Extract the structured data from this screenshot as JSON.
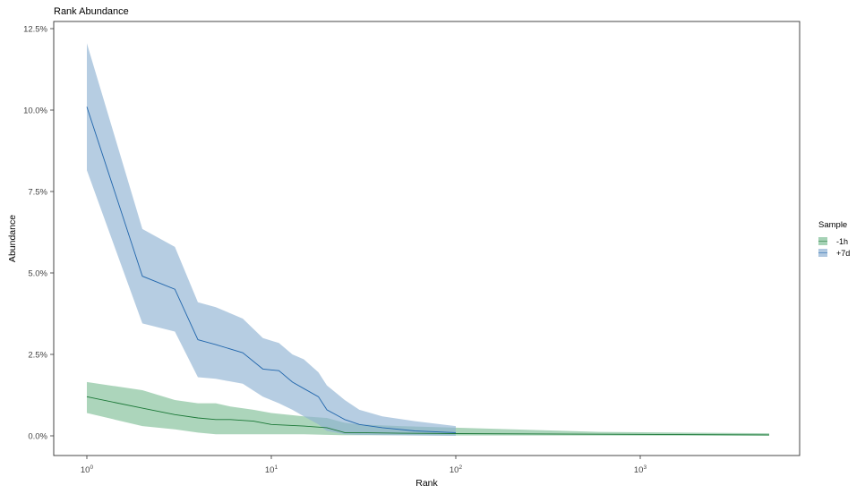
{
  "chart_data": {
    "type": "area",
    "title": "Rank Abundance",
    "xlabel": "Rank",
    "ylabel": "Abundance",
    "x_scale": "log10",
    "xlim": [
      1,
      5000
    ],
    "ylim": [
      0,
      12.5
    ],
    "x_ticks": [
      {
        "value": 1,
        "base": "10",
        "exp": "0"
      },
      {
        "value": 10,
        "base": "10",
        "exp": "1"
      },
      {
        "value": 100,
        "base": "10",
        "exp": "2"
      },
      {
        "value": 1000,
        "base": "10",
        "exp": "3"
      }
    ],
    "y_ticks": [
      {
        "value": 0,
        "label": "0.0%"
      },
      {
        "value": 2.5,
        "label": "2.5%"
      },
      {
        "value": 5,
        "label": "5.0%"
      },
      {
        "value": 7.5,
        "label": "7.5%"
      },
      {
        "value": 10,
        "label": "10.0%"
      },
      {
        "value": 12.5,
        "label": "12.5%"
      }
    ],
    "grid": false,
    "legend": {
      "title": "Sample",
      "position": "right"
    },
    "series": [
      {
        "name": "-1h",
        "color": "#1b7837",
        "fill": "#7fbf96",
        "x": [
          1,
          2,
          3,
          4,
          5,
          6,
          8,
          10,
          15,
          20,
          25,
          30,
          50,
          100,
          600,
          5000
        ],
        "y": [
          1.2,
          0.85,
          0.65,
          0.55,
          0.5,
          0.5,
          0.45,
          0.35,
          0.3,
          0.25,
          0.1,
          0.1,
          0.08,
          0.07,
          0.05,
          0.03
        ],
        "lower": [
          0.7,
          0.3,
          0.2,
          0.1,
          0.05,
          0.05,
          0.05,
          0.05,
          0.05,
          0.03,
          0.02,
          0.02,
          0.02,
          0.01,
          0.01,
          0.0
        ],
        "upper": [
          1.65,
          1.4,
          1.1,
          1.0,
          1.0,
          0.9,
          0.8,
          0.7,
          0.6,
          0.55,
          0.4,
          0.35,
          0.3,
          0.25,
          0.12,
          0.08
        ]
      },
      {
        "name": "+7d",
        "color": "#2166ac",
        "fill": "#8fb2d3",
        "x": [
          1,
          2,
          3,
          4,
          5,
          7,
          9,
          11,
          13,
          15,
          18,
          20,
          25,
          30,
          40,
          60,
          100
        ],
        "y": [
          10.1,
          4.9,
          4.5,
          2.95,
          2.8,
          2.55,
          2.05,
          2.0,
          1.65,
          1.45,
          1.2,
          0.8,
          0.5,
          0.35,
          0.25,
          0.15,
          0.1
        ],
        "lower": [
          8.15,
          3.45,
          3.2,
          1.8,
          1.75,
          1.6,
          1.2,
          1.0,
          0.8,
          0.6,
          0.35,
          0.15,
          0.05,
          0.03,
          0.02,
          0.01,
          0.0
        ],
        "upper": [
          12.05,
          6.35,
          5.8,
          4.1,
          3.95,
          3.6,
          3.0,
          2.85,
          2.5,
          2.35,
          1.95,
          1.55,
          1.1,
          0.8,
          0.6,
          0.45,
          0.3
        ]
      }
    ]
  }
}
